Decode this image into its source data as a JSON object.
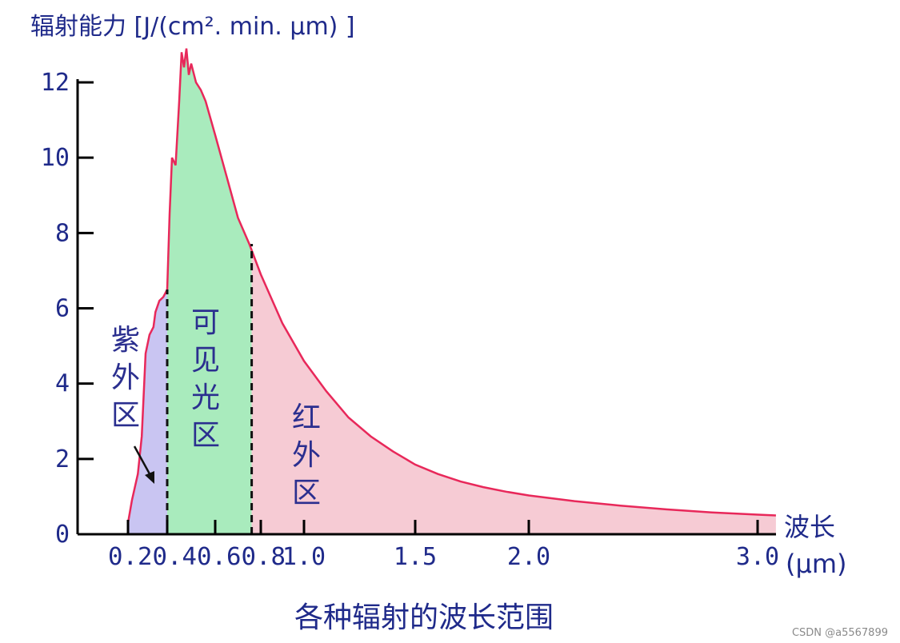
{
  "chart_data": {
    "type": "area",
    "ylabel": "辐射能力 [J/(cm². min. μm) ]",
    "xlabel": "波长",
    "xunit": "(μm)",
    "caption": "各种辐射的波长范围",
    "ylim": [
      0,
      12.8
    ],
    "y_ticks": [
      0,
      2,
      4,
      6,
      8,
      10,
      12
    ],
    "x_ticks": [
      0.2,
      0.4,
      0.6,
      0.8,
      1.0,
      1.5,
      2.0,
      3.0
    ],
    "x_tick_labels": [
      "0.2",
      "0.4",
      "0.6",
      "0.8",
      "1.0",
      "1.5",
      "2.0",
      "3.0"
    ],
    "x_tick_compact": "0.20.40.60.8",
    "grid": false,
    "legend": "none",
    "boundaries": [
      0.4,
      0.76
    ],
    "regions": [
      {
        "name": "紫外区",
        "from": 0.2,
        "to": 0.4,
        "color": "#c9c5f2"
      },
      {
        "name": "可见光区",
        "from": 0.4,
        "to": 0.76,
        "color": "#a9ebbd"
      },
      {
        "name": "红外区",
        "from": 0.76,
        "to": 3.08,
        "color": "#f6cbd4"
      }
    ],
    "series": [
      {
        "line_color": "#e8285a",
        "points": [
          [
            0.2,
            0.3
          ],
          [
            0.22,
            0.9
          ],
          [
            0.25,
            1.6
          ],
          [
            0.27,
            2.6
          ],
          [
            0.29,
            4.8
          ],
          [
            0.31,
            5.3
          ],
          [
            0.33,
            5.5
          ],
          [
            0.34,
            5.9
          ],
          [
            0.36,
            6.2
          ],
          [
            0.38,
            6.3
          ],
          [
            0.4,
            6.5
          ],
          [
            0.41,
            8.5
          ],
          [
            0.42,
            10.0
          ],
          [
            0.435,
            9.8
          ],
          [
            0.45,
            11.5
          ],
          [
            0.46,
            12.8
          ],
          [
            0.47,
            12.4
          ],
          [
            0.48,
            12.9
          ],
          [
            0.49,
            12.2
          ],
          [
            0.5,
            12.5
          ],
          [
            0.52,
            12.0
          ],
          [
            0.54,
            11.8
          ],
          [
            0.56,
            11.5
          ],
          [
            0.6,
            10.6
          ],
          [
            0.65,
            9.5
          ],
          [
            0.7,
            8.4
          ],
          [
            0.75,
            7.7
          ],
          [
            0.8,
            6.9
          ],
          [
            0.9,
            5.6
          ],
          [
            1.0,
            4.6
          ],
          [
            1.1,
            3.8
          ],
          [
            1.2,
            3.1
          ],
          [
            1.3,
            2.6
          ],
          [
            1.4,
            2.2
          ],
          [
            1.5,
            1.85
          ],
          [
            1.6,
            1.6
          ],
          [
            1.7,
            1.4
          ],
          [
            1.8,
            1.25
          ],
          [
            1.9,
            1.13
          ],
          [
            2.0,
            1.03
          ],
          [
            2.2,
            0.88
          ],
          [
            2.4,
            0.76
          ],
          [
            2.6,
            0.66
          ],
          [
            2.8,
            0.58
          ],
          [
            3.0,
            0.52
          ],
          [
            3.08,
            0.5
          ]
        ]
      }
    ]
  },
  "watermark": "CSDN @a5567899"
}
